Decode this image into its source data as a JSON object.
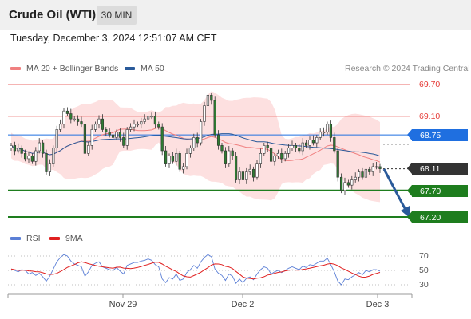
{
  "header": {
    "instrument": "Crude Oil (WTI)",
    "timeframe": "30 MIN"
  },
  "timestamp": "Tuesday, December 3, 2024 12:51:07 AM CET",
  "legend": {
    "ma20_label": "MA 20 + Bollinger Bands",
    "ma20_color": "#f08080",
    "ma50_label": "MA 50",
    "ma50_color": "#2a5a9a",
    "credit": "Research © 2024 Trading Central"
  },
  "price_levels": {
    "resistance_2": "69.70",
    "resistance_1": "69.10",
    "ma_level": "68.75",
    "current": "68.11",
    "support_1": "67.70",
    "support_2": "67.20"
  },
  "rsi_legend": {
    "rsi_label": "RSI",
    "rsi_color": "#5b7fd6",
    "ma_label": "9MA",
    "ma_color": "#e02020"
  },
  "rsi_levels": [
    "70",
    "50",
    "30"
  ],
  "x_axis": [
    "Nov 29",
    "Dec 2",
    "Dec 3"
  ],
  "colors": {
    "resistance": "#e53935",
    "support": "#1e7d1e",
    "ma_tag": "#1f6fe0",
    "current_tag": "#333333",
    "arrow": "#2a5a9a",
    "band_fill": "#fde0e0"
  },
  "chart_data": {
    "type": "candlestick",
    "title": "Crude Oil (WTI)",
    "timeframe": "30 MIN",
    "yrange": [
      66.9,
      70.0
    ],
    "levels": [
      69.7,
      69.1,
      68.75,
      68.11,
      67.7,
      67.2
    ],
    "closes": [
      68.55,
      68.45,
      68.5,
      68.4,
      68.3,
      68.35,
      68.25,
      68.45,
      68.6,
      68.4,
      68.05,
      68.2,
      68.5,
      68.85,
      68.95,
      69.2,
      69.15,
      69.05,
      69.05,
      69.0,
      68.95,
      68.4,
      68.55,
      68.85,
      68.95,
      69.05,
      68.85,
      68.8,
      68.75,
      68.7,
      68.8,
      68.7,
      68.55,
      68.85,
      68.9,
      68.95,
      68.95,
      69.0,
      69.05,
      69.1,
      69.1,
      68.95,
      68.9,
      68.45,
      68.2,
      68.35,
      68.25,
      68.4,
      68.1,
      68.15,
      68.4,
      68.5,
      68.7,
      68.6,
      69.0,
      69.3,
      69.5,
      69.4,
      68.75,
      68.55,
      68.45,
      68.2,
      68.45,
      68.35,
      67.9,
      68.05,
      67.9,
      68.05,
      68.1,
      67.95,
      68.2,
      68.4,
      68.55,
      68.5,
      68.25,
      68.35,
      68.4,
      68.3,
      68.4,
      68.5,
      68.55,
      68.5,
      68.45,
      68.6,
      68.55,
      68.65,
      68.6,
      68.7,
      68.8,
      68.8,
      68.95,
      68.7,
      68.45,
      67.95,
      67.7,
      67.85,
      67.8,
      67.9,
      67.95,
      68.05,
      67.95,
      68.1,
      68.05,
      68.15,
      68.15,
      68.11
    ],
    "rsi": [
      52,
      50,
      48,
      51,
      50,
      45,
      47,
      43,
      46,
      41,
      35,
      42,
      52,
      62,
      68,
      72,
      70,
      63,
      59,
      57,
      55,
      42,
      48,
      57,
      60,
      62,
      55,
      53,
      51,
      50,
      54,
      49,
      45,
      57,
      59,
      61,
      61,
      63,
      64,
      66,
      64,
      58,
      55,
      38,
      33,
      40,
      38,
      45,
      36,
      38,
      47,
      51,
      57,
      53,
      62,
      68,
      72,
      69,
      52,
      46,
      43,
      36,
      45,
      42,
      32,
      38,
      33,
      39,
      41,
      37,
      45,
      51,
      55,
      53,
      45,
      48,
      50,
      47,
      50,
      53,
      55,
      53,
      51,
      56,
      54,
      58,
      57,
      60,
      63,
      63,
      67,
      58,
      48,
      35,
      30,
      38,
      37,
      41,
      44,
      47,
      44,
      50,
      48,
      51,
      51,
      49
    ],
    "rsi_levels": [
      70,
      50,
      30
    ],
    "x_labels": [
      "Nov 29",
      "Dec 2",
      "Dec 3"
    ]
  }
}
